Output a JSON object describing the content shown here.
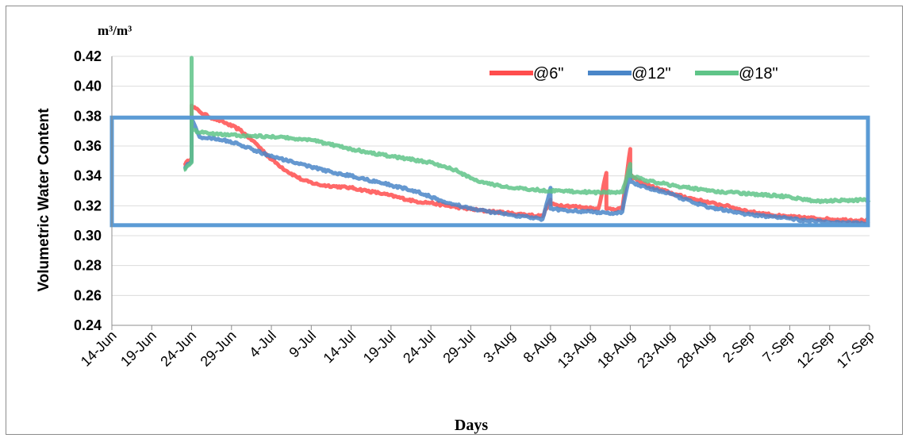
{
  "chart_data": {
    "type": "line",
    "unit_label": "m³/m³",
    "xlabel": "Days",
    "ylabel": "Volumetric Water Content",
    "ylim": [
      0.24,
      0.42
    ],
    "yticks": [
      "0.24",
      "0.26",
      "0.28",
      "0.30",
      "0.32",
      "0.34",
      "0.36",
      "0.38",
      "0.40",
      "0.42"
    ],
    "xlim": [
      "14-Jun",
      "17-Sep"
    ],
    "xticks": [
      "14-Jun",
      "19-Jun",
      "24-Jun",
      "29-Jun",
      "4-Jul",
      "9-Jul",
      "14-Jul",
      "19-Jul",
      "24-Jul",
      "29-Jul",
      "3-Aug",
      "8-Aug",
      "13-Aug",
      "18-Aug",
      "23-Aug",
      "28-Aug",
      "2-Sep",
      "7-Sep",
      "12-Sep",
      "17-Sep"
    ],
    "grid": "horizontal",
    "legend_position": "top-right",
    "highlight_box": {
      "y_range": [
        0.307,
        0.379
      ],
      "color": "#5b9bd5"
    },
    "series": [
      {
        "name": "@6\"",
        "color": "#ff4d4d",
        "x": [
          "23-Jun",
          "24-Jun",
          "24-Jun",
          "25-Jun",
          "26-Jun",
          "28-Jun",
          "30-Jun",
          "2-Jul",
          "4-Jul",
          "6-Jul",
          "8-Jul",
          "10-Jul",
          "14-Jul",
          "18-Jul",
          "22-Jul",
          "24-Jul",
          "26-Jul",
          "30-Jul",
          "3-Aug",
          "7-Aug",
          "8-Aug",
          "8-Aug",
          "10-Aug",
          "12-Aug",
          "14-Aug",
          "15-Aug",
          "15-Aug",
          "17-Aug",
          "18-Aug",
          "18-Aug",
          "19-Aug",
          "20-Aug",
          "24-Aug",
          "28-Aug",
          "30-Aug",
          "2-Sep",
          "6-Sep",
          "9-Sep",
          "12-Sep",
          "17-Sep"
        ],
        "y": [
          0.347,
          0.352,
          0.387,
          0.383,
          0.38,
          0.376,
          0.371,
          0.362,
          0.351,
          0.343,
          0.337,
          0.334,
          0.332,
          0.328,
          0.323,
          0.322,
          0.32,
          0.317,
          0.315,
          0.313,
          0.324,
          0.321,
          0.32,
          0.319,
          0.318,
          0.342,
          0.318,
          0.318,
          0.358,
          0.34,
          0.337,
          0.334,
          0.327,
          0.322,
          0.32,
          0.316,
          0.313,
          0.312,
          0.311,
          0.31
        ]
      },
      {
        "name": "@12\"",
        "color": "#4a86c8",
        "x": [
          "23-Jun",
          "24-Jun",
          "24-Jun",
          "25-Jun",
          "28-Jun",
          "30-Jun",
          "3-Jul",
          "6-Jul",
          "9-Jul",
          "12-Jul",
          "14-Jul",
          "18-Jul",
          "22-Jul",
          "26-Jul",
          "30-Jul",
          "3-Aug",
          "7-Aug",
          "8-Aug",
          "8-Aug",
          "10-Aug",
          "13-Aug",
          "16-Aug",
          "17-Aug",
          "18-Aug",
          "18-Aug",
          "20-Aug",
          "23-Aug",
          "26-Aug",
          "28-Aug",
          "2-Sep",
          "6-Sep",
          "9-Sep",
          "12-Sep",
          "17-Sep"
        ],
        "y": [
          0.345,
          0.35,
          0.378,
          0.366,
          0.364,
          0.361,
          0.355,
          0.35,
          0.346,
          0.342,
          0.34,
          0.335,
          0.33,
          0.322,
          0.317,
          0.314,
          0.311,
          0.332,
          0.318,
          0.317,
          0.316,
          0.315,
          0.316,
          0.344,
          0.336,
          0.332,
          0.328,
          0.322,
          0.319,
          0.314,
          0.312,
          0.31,
          0.309,
          0.308
        ]
      },
      {
        "name": "@18\"",
        "color": "#5fc488",
        "x": [
          "23-Jun",
          "24-Jun",
          "24-Jun",
          "24-Jun",
          "25-Jun",
          "30-Jun",
          "5-Jul",
          "9-Jul",
          "14-Jul",
          "19-Jul",
          "24-Jul",
          "27-Jul",
          "30-Jul",
          "3-Aug",
          "8-Aug",
          "13-Aug",
          "17-Aug",
          "18-Aug",
          "18-Aug",
          "20-Aug",
          "24-Aug",
          "28-Aug",
          "2-Sep",
          "7-Sep",
          "10-Sep",
          "17-Sep"
        ],
        "y": [
          0.344,
          0.349,
          0.419,
          0.371,
          0.369,
          0.367,
          0.366,
          0.364,
          0.358,
          0.353,
          0.349,
          0.344,
          0.336,
          0.332,
          0.33,
          0.329,
          0.329,
          0.348,
          0.34,
          0.337,
          0.333,
          0.33,
          0.328,
          0.326,
          0.323,
          0.324
        ]
      }
    ]
  }
}
